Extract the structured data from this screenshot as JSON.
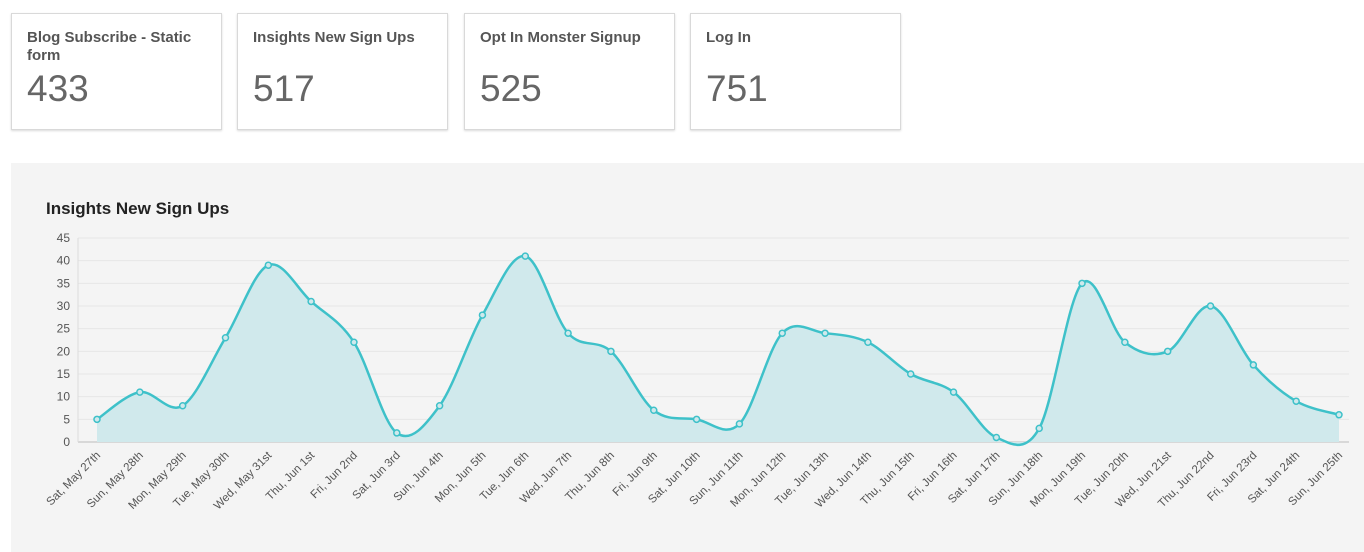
{
  "cards": [
    {
      "title": "Blog Subscribe - Static form",
      "value": "433"
    },
    {
      "title": "Insights New Sign Ups",
      "value": "517"
    },
    {
      "title": "Opt In Monster Signup",
      "value": "525"
    },
    {
      "title": "Log In",
      "value": "751"
    }
  ],
  "colors": {
    "line": "#3ec1c9",
    "fill": "#d0e9ec",
    "grid": "#e6e6e6"
  },
  "chart_data": {
    "type": "area",
    "title": "Insights New Sign Ups",
    "ylim": [
      0,
      45
    ],
    "yticks": [
      0,
      5,
      10,
      15,
      20,
      25,
      30,
      35,
      40,
      45
    ],
    "grid": true,
    "categories": [
      "Sat, May 27th",
      "Sun, May 28th",
      "Mon, May 29th",
      "Tue, May 30th",
      "Wed, May 31st",
      "Thu, Jun 1st",
      "Fri, Jun 2nd",
      "Sat, Jun 3rd",
      "Sun, Jun 4th",
      "Mon, Jun 5th",
      "Tue, Jun 6th",
      "Wed, Jun 7th",
      "Thu, Jun 8th",
      "Fri, Jun 9th",
      "Sat, Jun 10th",
      "Sun, Jun 11th",
      "Mon, Jun 12th",
      "Tue, Jun 13th",
      "Wed, Jun 14th",
      "Thu, Jun 15th",
      "Fri, Jun 16th",
      "Sat, Jun 17th",
      "Sun, Jun 18th",
      "Mon, Jun 19th",
      "Tue, Jun 20th",
      "Wed, Jun 21st",
      "Thu, Jun 22nd",
      "Fri, Jun 23rd",
      "Sat, Jun 24th",
      "Sun, Jun 25th"
    ],
    "values": [
      5,
      11,
      8,
      23,
      39,
      31,
      22,
      2,
      8,
      28,
      41,
      24,
      20,
      7,
      5,
      4,
      24,
      24,
      22,
      15,
      11,
      1,
      3,
      35,
      22,
      20,
      30,
      17,
      9,
      6
    ]
  }
}
